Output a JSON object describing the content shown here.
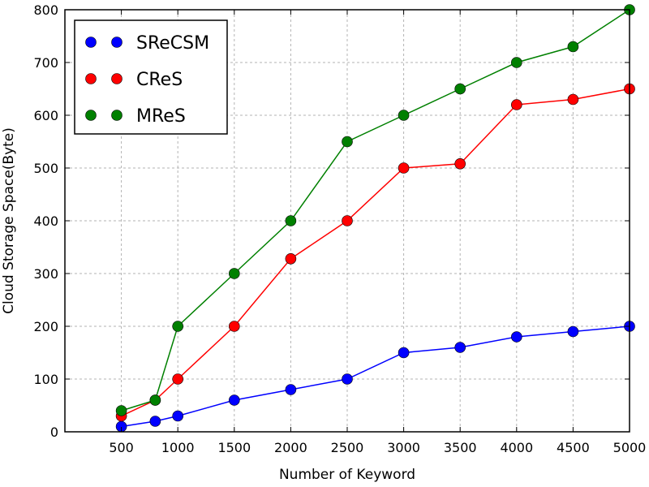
{
  "chart_data": {
    "type": "line",
    "title": "",
    "xlabel": "Number of Keyword",
    "ylabel": "Cloud Storage Space(Byte)",
    "x": [
      500,
      800,
      1000,
      1500,
      2000,
      2500,
      3000,
      3500,
      4000,
      4500,
      5000
    ],
    "xticks": [
      500,
      1000,
      1500,
      2000,
      2500,
      3000,
      3500,
      4000,
      4500,
      5000
    ],
    "yticks": [
      0,
      100,
      200,
      300,
      400,
      500,
      600,
      700,
      800
    ],
    "xlim": [
      0,
      5000
    ],
    "ylim": [
      0,
      800
    ],
    "grid": true,
    "legend_position": "top-left",
    "series": [
      {
        "name": "SReCSM",
        "color": "#0000ff",
        "values": [
          10,
          20,
          30,
          60,
          80,
          100,
          150,
          160,
          180,
          190,
          200
        ]
      },
      {
        "name": "CReS",
        "color": "#ff0000",
        "values": [
          30,
          60,
          100,
          200,
          328,
          400,
          500,
          508,
          620,
          630,
          650
        ]
      },
      {
        "name": "MReS",
        "color": "#008000",
        "values": [
          40,
          60,
          200,
          300,
          400,
          550,
          600,
          650,
          700,
          730,
          800
        ]
      }
    ]
  }
}
